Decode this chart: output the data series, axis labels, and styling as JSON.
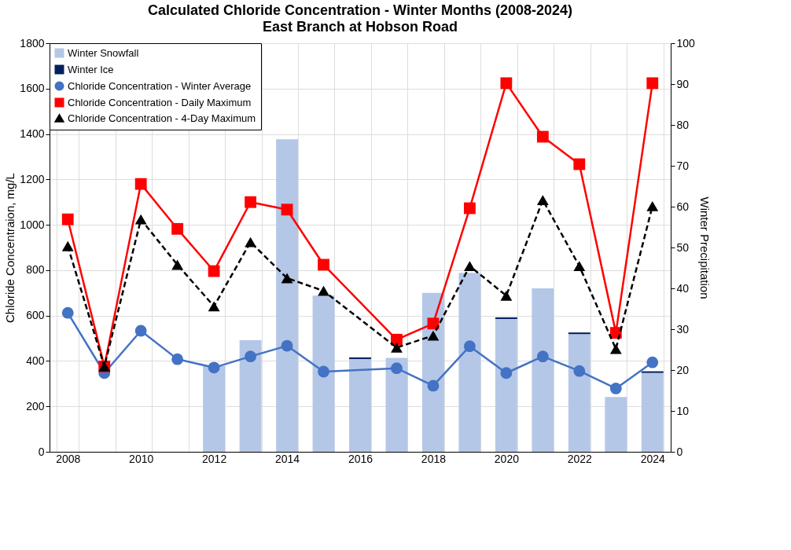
{
  "chart_data": {
    "type": "line",
    "title": "Calculated Chloride Concentration - Winter Months (2008-2024)",
    "subtitle": "East Branch at Hobson Road",
    "ylabel": "Chloride Concentraion, mg/L",
    "y2label": "Winter Precipitation",
    "categories": [
      "2008",
      null,
      "2010",
      null,
      "2012",
      null,
      "2014",
      null,
      "2016",
      null,
      "2018",
      null,
      "2020",
      null,
      "2022",
      null,
      "2024"
    ],
    "stacked": true,
    "series": [
      {
        "name": "Winter Snowfall",
        "type": "bar",
        "axis": "y2",
        "color": "#b4c7e7",
        "values": [
          null,
          null,
          null,
          null,
          21,
          27.3,
          76.5,
          38.2,
          22.7,
          23,
          38.9,
          43.8,
          32.5,
          40,
          28.8,
          13.4,
          19.3
        ]
      },
      {
        "name": "Winter Ice",
        "type": "bar",
        "axis": "y2",
        "color": "#002060",
        "values": [
          null,
          null,
          null,
          null,
          null,
          null,
          null,
          null,
          0.4,
          null,
          null,
          null,
          0.4,
          null,
          0.4,
          null,
          0.4
        ]
      },
      {
        "name": "Chloride Concentration - Winter Average",
        "color": "#4472c4",
        "marker": "circle",
        "line_style": "solid",
        "values": [
          612,
          347,
          533,
          408,
          371,
          420,
          467,
          353,
          null,
          368,
          291,
          465,
          347,
          420,
          356,
          279,
          394
        ]
      },
      {
        "name": "Chloride Concentration - Daily Maximum",
        "color": "#ff0000",
        "marker": "square",
        "line_style": "solid",
        "values": [
          1024,
          376,
          1180,
          982,
          796,
          1100,
          1067,
          824,
          null,
          494,
          565,
          1073,
          1624,
          1388,
          1267,
          524,
          1624
        ]
      },
      {
        "name": "Chloride Concentration - 4-Day Maximum",
        "color": "#000000",
        "marker": "triangle",
        "line_style": "dashed",
        "values": [
          906,
          376,
          1024,
          824,
          641,
          924,
          765,
          709,
          null,
          459,
          512,
          818,
          688,
          1109,
          818,
          453,
          1082
        ]
      }
    ],
    "ylim": [
      0,
      1800
    ],
    "yticks": [
      0,
      200,
      400,
      600,
      800,
      {
        "value": 1000,
        "label": "1000"
      },
      {
        "value": 1200,
        "label": "1200"
      },
      {
        "value": 1400,
        "label": "1400"
      },
      {
        "value": 1600,
        "label": "1600"
      },
      {
        "value": 1800,
        "label": "1800"
      }
    ],
    "y2lim": [
      0,
      100
    ],
    "y2ticks": [
      0,
      10,
      20,
      30,
      40,
      50,
      60,
      70,
      80,
      90,
      100
    ],
    "grid": true,
    "legend": "top left"
  }
}
